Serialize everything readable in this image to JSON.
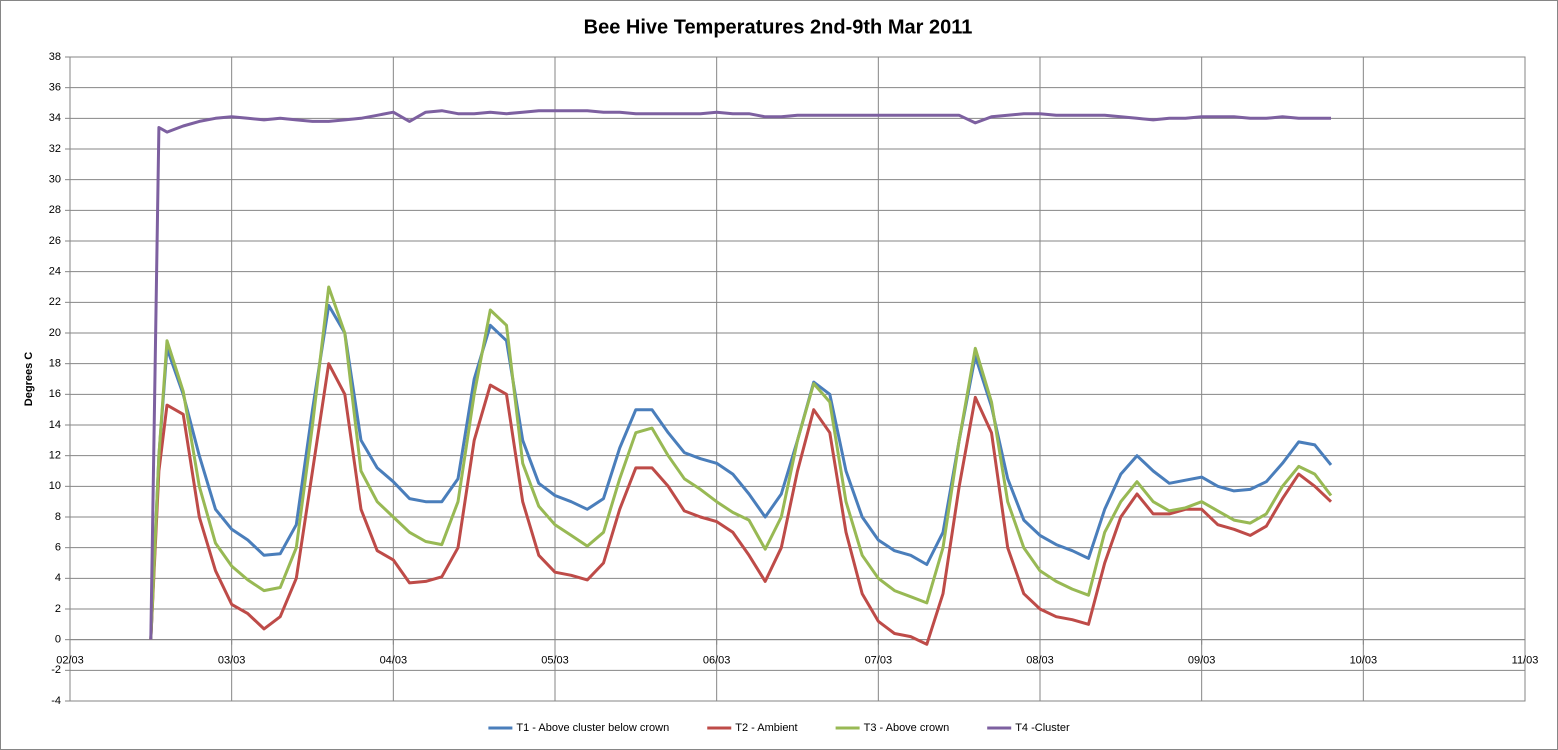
{
  "chart_data": {
    "type": "line",
    "title": "Bee Hive Temperatures  2nd-9th Mar 2011",
    "y_label": "Degrees C",
    "x": [
      2.5,
      2.55,
      2.6,
      2.7,
      2.8,
      2.9,
      3.0,
      3.1,
      3.2,
      3.3,
      3.4,
      3.5,
      3.6,
      3.7,
      3.8,
      3.9,
      4.0,
      4.1,
      4.2,
      4.3,
      4.4,
      4.5,
      4.6,
      4.7,
      4.8,
      4.9,
      5.0,
      5.1,
      5.2,
      5.3,
      5.4,
      5.5,
      5.6,
      5.7,
      5.8,
      5.9,
      6.0,
      6.1,
      6.2,
      6.3,
      6.4,
      6.5,
      6.6,
      6.7,
      6.8,
      6.9,
      7.0,
      7.1,
      7.2,
      7.3,
      7.4,
      7.5,
      7.6,
      7.7,
      7.8,
      7.9,
      8.0,
      8.1,
      8.2,
      8.3,
      8.4,
      8.5,
      8.6,
      8.7,
      8.8,
      8.9,
      9.0,
      9.1,
      9.2,
      9.3,
      9.4,
      9.5,
      9.6,
      9.7,
      9.8
    ],
    "series": [
      {
        "name": "T1 - Above cluster below crown",
        "color": "#4a7ebb",
        "values": [
          0,
          12,
          19,
          16,
          12,
          8.5,
          7.2,
          6.5,
          5.5,
          5.6,
          7.5,
          15,
          21.8,
          20,
          13,
          11.2,
          10.3,
          9.2,
          9,
          9,
          10.5,
          17,
          20.5,
          19.5,
          13,
          10.2,
          9.4,
          9,
          8.5,
          9.2,
          12.5,
          15,
          15,
          13.5,
          12.2,
          11.8,
          11.5,
          10.8,
          9.5,
          8,
          9.5,
          13,
          16.8,
          16,
          11,
          8,
          6.5,
          5.8,
          5.5,
          4.9,
          7,
          13,
          18.5,
          15.2,
          10.5,
          7.8,
          6.8,
          6.2,
          5.8,
          5.3,
          8.5,
          10.8,
          12,
          11,
          10.2,
          10.4,
          10.6,
          10,
          9.7,
          9.8,
          10.3,
          11.5,
          12.9,
          12.7,
          11.4
        ]
      },
      {
        "name": "T2 - Ambient",
        "color": "#be4b48",
        "values": [
          0,
          11,
          15.3,
          14.7,
          8,
          4.5,
          2.3,
          1.7,
          0.7,
          1.5,
          4,
          11,
          18,
          16,
          8.5,
          5.8,
          5.2,
          3.7,
          3.8,
          4.1,
          6,
          13,
          16.6,
          16,
          9,
          5.5,
          4.4,
          4.2,
          3.9,
          5,
          8.5,
          11.2,
          11.2,
          10,
          8.4,
          8,
          7.7,
          7,
          5.5,
          3.8,
          6,
          11,
          15,
          13.5,
          7,
          3,
          1.2,
          0.4,
          0.2,
          -0.3,
          3,
          10,
          15.8,
          13.5,
          6,
          3,
          2,
          1.5,
          1.3,
          1,
          5,
          8,
          9.5,
          8.2,
          8.2,
          8.5,
          8.5,
          7.5,
          7.2,
          6.8,
          7.4,
          9.2,
          10.8,
          10,
          9
        ]
      },
      {
        "name": "T3 - Above crown",
        "color": "#98b954",
        "values": [
          0,
          12,
          19.5,
          16.2,
          10,
          6.3,
          4.8,
          3.9,
          3.2,
          3.4,
          6,
          14,
          23,
          20,
          11,
          9,
          8,
          7,
          6.4,
          6.2,
          9,
          16,
          21.5,
          20.5,
          11.5,
          8.7,
          7.5,
          6.8,
          6.1,
          7,
          10.5,
          13.5,
          13.8,
          12,
          10.5,
          9.8,
          9,
          8.3,
          7.8,
          5.9,
          8,
          13,
          16.7,
          15.5,
          9,
          5.5,
          4,
          3.2,
          2.8,
          2.4,
          6,
          13,
          19,
          15.5,
          9,
          6,
          4.5,
          3.8,
          3.3,
          2.9,
          7,
          9,
          10.3,
          9,
          8.4,
          8.6,
          9,
          8.4,
          7.8,
          7.6,
          8.2,
          10,
          11.3,
          10.8,
          9.4
        ]
      },
      {
        "name": "T4 -Cluster",
        "color": "#7d60a0",
        "values": [
          0,
          33.4,
          33.1,
          33.5,
          33.8,
          34,
          34.1,
          34,
          33.9,
          34,
          33.9,
          33.8,
          33.8,
          33.9,
          34,
          34.2,
          34.4,
          33.8,
          34.4,
          34.5,
          34.3,
          34.3,
          34.4,
          34.3,
          34.4,
          34.5,
          34.5,
          34.5,
          34.5,
          34.4,
          34.4,
          34.3,
          34.3,
          34.3,
          34.3,
          34.3,
          34.4,
          34.3,
          34.3,
          34.1,
          34.1,
          34.2,
          34.2,
          34.2,
          34.2,
          34.2,
          34.2,
          34.2,
          34.2,
          34.2,
          34.2,
          34.2,
          33.7,
          34.1,
          34.2,
          34.3,
          34.3,
          34.2,
          34.2,
          34.2,
          34.2,
          34.1,
          34,
          33.9,
          34,
          34,
          34.1,
          34.1,
          34.1,
          34,
          34,
          34.1,
          34,
          34,
          34
        ]
      }
    ],
    "xlim": [
      2,
      11
    ],
    "xticks": [
      {
        "value": 2,
        "label": "02/03"
      },
      {
        "value": 3,
        "label": "03/03"
      },
      {
        "value": 4,
        "label": "04/03"
      },
      {
        "value": 5,
        "label": "05/03"
      },
      {
        "value": 6,
        "label": "06/03"
      },
      {
        "value": 7,
        "label": "07/03"
      },
      {
        "value": 8,
        "label": "08/03"
      },
      {
        "value": 9,
        "label": "09/03"
      },
      {
        "value": 10,
        "label": "10/03"
      },
      {
        "value": 11,
        "label": "11/03"
      }
    ],
    "ylim": [
      -4,
      38
    ],
    "yticks": [
      -4,
      -2,
      0,
      2,
      4,
      6,
      8,
      10,
      12,
      14,
      16,
      18,
      20,
      22,
      24,
      26,
      28,
      30,
      32,
      34,
      36,
      38
    ],
    "grid": true,
    "legend": "bottom"
  }
}
